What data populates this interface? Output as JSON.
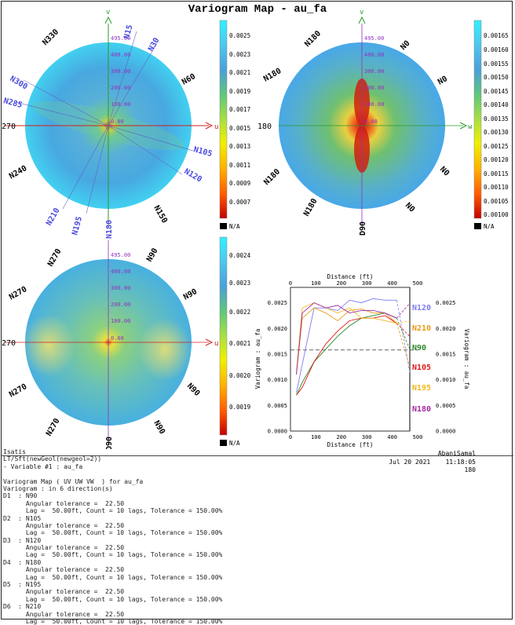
{
  "title": "Variogram Map - au_fa",
  "map1": {
    "axis_v": "v",
    "axis_u": "u",
    "distance_ticks": [
      "495.00",
      "400.00",
      "300.00",
      "200.00",
      "100.00",
      "0.00"
    ],
    "dir_labels_black": [
      "N330",
      "N60",
      "N240",
      "N150"
    ],
    "dir_labels_blue": [
      "N15",
      "N30",
      "N300",
      "N285",
      "N105",
      "N120",
      "N210",
      "N195",
      "N180"
    ],
    "left_label": "270",
    "colorbar": [
      "0.0025",
      "0.0023",
      "0.0021",
      "0.0019",
      "0.0017",
      "0.0015",
      "0.0013",
      "0.0011",
      "0.0009",
      "0.0007"
    ],
    "na": "N/A"
  },
  "map2": {
    "axis_v": "v",
    "axis_w": "w",
    "distance_ticks": [
      "495.00",
      "400.00",
      "300.00",
      "200.00",
      "100.00",
      "0.00"
    ],
    "dir_labels": [
      "N180",
      "N0",
      "N180",
      "N0",
      "N180",
      "N0",
      "N180",
      "N0",
      "D90"
    ],
    "left_label": "180",
    "colorbar": [
      "0.00165",
      "0.00160",
      "0.00155",
      "0.00150",
      "0.00145",
      "0.00140",
      "0.00135",
      "0.00130",
      "0.00125",
      "0.00120",
      "0.00115",
      "0.00110",
      "0.00105",
      "0.00100"
    ],
    "na": "N/A"
  },
  "map3": {
    "axis_u": "u",
    "axis_w": "w",
    "distance_ticks": [
      "495.00",
      "400.00",
      "300.00",
      "200.00",
      "100.00",
      "0.00"
    ],
    "dir_labels": [
      "N270",
      "N90",
      "N270",
      "N90",
      "N270",
      "N90",
      "N270",
      "N90",
      "D90"
    ],
    "left_label": "270",
    "colorbar": [
      "0.0024",
      "0.0023",
      "0.0022",
      "0.0021",
      "0.0020",
      "0.0019"
    ],
    "na": "N/A"
  },
  "chart_data": {
    "type": "line",
    "xlabel": "Distance (ft)",
    "ylabel": "Variogram : au_fa",
    "xlim": [
      0,
      550
    ],
    "ylim": [
      0,
      0.0028
    ],
    "x_ticks": [
      "0",
      "100",
      "200",
      "300",
      "400",
      "500"
    ],
    "y_ticks": [
      "0.0000",
      "0.0005",
      "0.0010",
      "0.0015",
      "0.0020",
      "0.0025"
    ],
    "sill": 0.00158,
    "series": [
      {
        "name": "N120",
        "color": "#7c7cf0",
        "x": [
          25,
          50,
          100,
          150,
          200,
          250,
          300,
          350,
          400,
          450
        ],
        "y": [
          0.00075,
          0.0013,
          0.0024,
          0.0024,
          0.00235,
          0.00255,
          0.0025,
          0.00258,
          0.00255,
          0.00255
        ]
      },
      {
        "name": "N210",
        "color": "#e89a16",
        "x": [
          25,
          50,
          100,
          150,
          200,
          250,
          300,
          350,
          400,
          450
        ],
        "y": [
          0.0011,
          0.0022,
          0.0024,
          0.0023,
          0.00215,
          0.00235,
          0.00238,
          0.0023,
          0.0023,
          0.0021
        ]
      },
      {
        "name": "N90",
        "color": "#2a8a2a",
        "x": [
          25,
          50,
          100,
          150,
          200,
          250,
          300,
          350,
          400,
          450
        ],
        "y": [
          0.0007,
          0.00095,
          0.00135,
          0.0016,
          0.00185,
          0.00205,
          0.0022,
          0.00225,
          0.0023,
          0.0022
        ]
      },
      {
        "name": "N105",
        "color": "#e01818",
        "x": [
          25,
          50,
          100,
          150,
          200,
          250,
          300,
          350,
          400,
          450
        ],
        "y": [
          0.0007,
          0.00085,
          0.00135,
          0.0017,
          0.00195,
          0.00215,
          0.0022,
          0.0022,
          0.00225,
          0.0021
        ]
      },
      {
        "name": "N195",
        "color": "#f0b818",
        "x": [
          25,
          50,
          100,
          150,
          200,
          250,
          300,
          350,
          400,
          450
        ],
        "y": [
          0.00115,
          0.0024,
          0.0025,
          0.0024,
          0.0023,
          0.0024,
          0.0022,
          0.0022,
          0.00215,
          0.0021
        ]
      },
      {
        "name": "N180",
        "color": "#a22aa2",
        "x": [
          25,
          50,
          100,
          150,
          200,
          250,
          300,
          350,
          400,
          450
        ],
        "y": [
          0.0011,
          0.0023,
          0.0025,
          0.0024,
          0.00245,
          0.0023,
          0.00235,
          0.00235,
          0.0023,
          0.0022
        ]
      }
    ]
  },
  "footer": {
    "app": "Isatis",
    "lines": [
      "LT/Sft(newGeol(newgeol=2))",
      "- Variable #1 : au_fa",
      "",
      "Variogram Map ( UV UW VW  ) for au_fa",
      "Variogram : in 6 direction(s)",
      "D1  : N90",
      "      Angular tolerance =  22.50",
      "      Lag =  50.00ft, Count = 10 lags, Tolerance = 150.00%",
      "D2  : N105",
      "      Angular tolerance =  22.50",
      "      Lag =  50.00ft, Count = 10 lags, Tolerance = 150.00%",
      "D3  : N120",
      "      Angular tolerance =  22.50",
      "      Lag =  50.00ft, Count = 10 lags, Tolerance = 150.00%",
      "D4  : N180",
      "      Angular tolerance =  22.50",
      "      Lag =  50.00ft, Count = 10 lags, Tolerance = 150.00%",
      "D5  : N195",
      "      Angular tolerance =  22.50",
      "      Lag =  50.00ft, Count = 10 lags, Tolerance = 150.00%",
      "D6  : N210",
      "      Angular tolerance =  22.50",
      "      Lag =  50.00ft, Count = 10 lags, Tolerance = 150.00%"
    ],
    "user": "AbaniSamal",
    "date": "Jul 20 2021    11:18:05",
    "id": "180"
  }
}
